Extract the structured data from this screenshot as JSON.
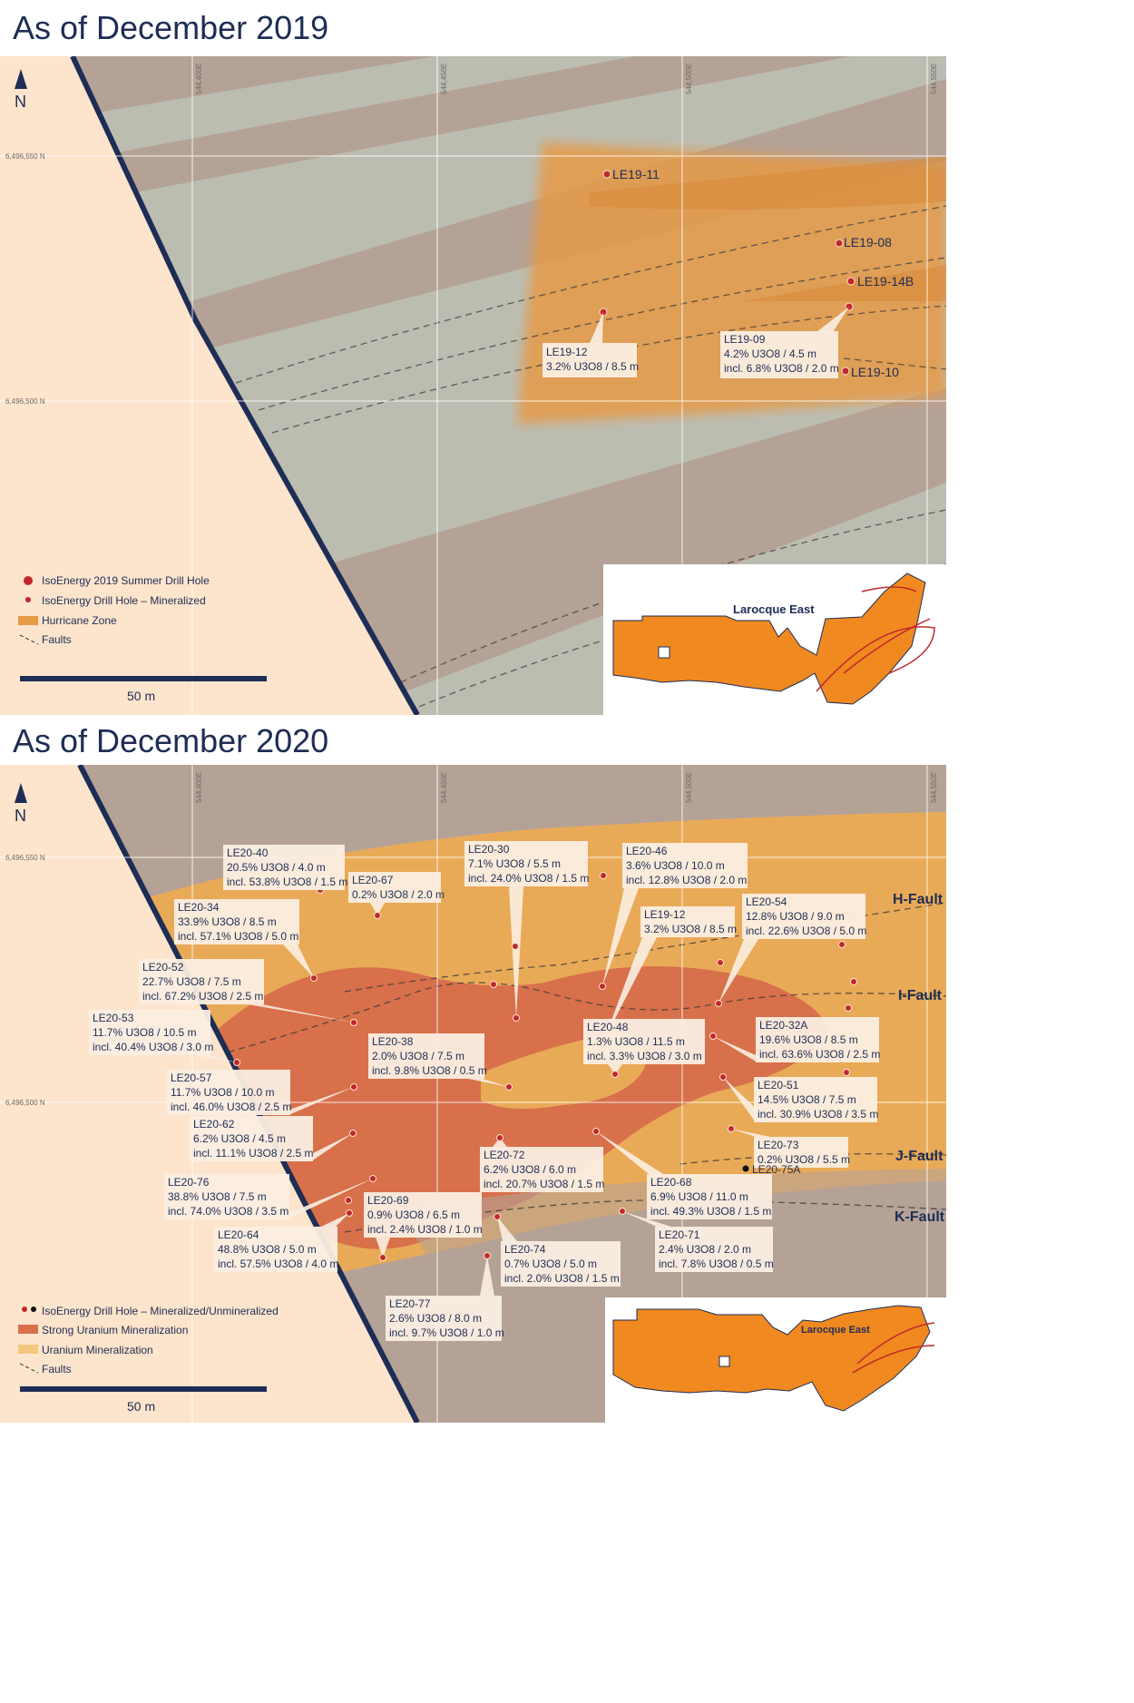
{
  "top": {
    "title": "As of December 2019",
    "north": "N",
    "grid": {
      "e1": "544,400E",
      "e2": "544,450E",
      "e3": "544,500E",
      "e4": "544,550E",
      "n1": "6,496,550 N",
      "n2": "6,496,500 N"
    },
    "holes": [
      {
        "id": "LE19-11"
      },
      {
        "id": "LE19-08"
      },
      {
        "id": "LE19-14B"
      },
      {
        "id": "LE19-10"
      }
    ],
    "callouts": {
      "le1912": {
        "name": "LE19-12",
        "l1": "3.2% U3O8 / 8.5 m"
      },
      "le1909": {
        "name": "LE19-09",
        "l1": "4.2% U3O8 / 4.5 m",
        "l2": "incl. 6.8% U3O8 / 2.0 m"
      }
    },
    "legend": {
      "summer": "IsoEnergy 2019 Summer Drill Hole",
      "mineralized": "IsoEnergy Drill Hole – Mineralized",
      "zone": "Hurricane Zone",
      "faults": "Faults"
    },
    "scale": "50 m",
    "inset": "Larocque East"
  },
  "bottom": {
    "title": "As of December 2020",
    "north": "N",
    "grid": {
      "e1": "544,400E",
      "e2": "544,450E",
      "e3": "544,500E",
      "e4": "544,550E",
      "n1": "6,496,550 N",
      "n2": "6,496,500 N"
    },
    "faults": {
      "h": "H-Fault",
      "i": "I-Fault",
      "j": "J-Fault",
      "k": "K-Fault"
    },
    "callouts": [
      {
        "name": "LE20-40",
        "l1": "20.5% U3O8 / 4.0 m",
        "l2": "incl. 53.8% U3O8 / 1.5 m"
      },
      {
        "name": "LE20-67",
        "l1": "0.2% U3O8 / 2.0 m",
        "l2": ""
      },
      {
        "name": "LE20-30",
        "l1": "7.1% U3O8 / 5.5 m",
        "l2": "incl. 24.0% U3O8 / 1.5 m"
      },
      {
        "name": "LE20-46",
        "l1": "3.6% U3O8 / 10.0 m",
        "l2": "incl. 12.8% U3O8 / 2.0 m"
      },
      {
        "name": "LE20-34",
        "l1": "33.9% U3O8 / 8.5 m",
        "l2": "incl. 57.1% U3O8 / 5.0 m"
      },
      {
        "name": "LE19-12",
        "l1": "3.2% U3O8 / 8.5 m",
        "l2": ""
      },
      {
        "name": "LE20-54",
        "l1": "12.8% U3O8 / 9.0 m",
        "l2": "incl. 22.6% U3O8 / 5.0 m"
      },
      {
        "name": "LE20-52",
        "l1": "22.7% U3O8 / 7.5 m",
        "l2": "incl. 67.2% U3O8 / 2.5 m"
      },
      {
        "name": "LE20-53",
        "l1": "11.7% U3O8 / 10.5 m",
        "l2": "incl. 40.4% U3O8 / 3.0 m"
      },
      {
        "name": "LE20-38",
        "l1": "2.0% U3O8 / 7.5 m",
        "l2": "incl. 9.8% U3O8 / 0.5 m"
      },
      {
        "name": "LE20-48",
        "l1": "1.3% U3O8 / 11.5 m",
        "l2": "incl. 3.3% U3O8 / 3.0 m"
      },
      {
        "name": "LE20-32A",
        "l1": "19.6% U3O8 / 8.5 m",
        "l2": "incl. 63.6% U3O8 / 2.5 m"
      },
      {
        "name": "LE20-57",
        "l1": "11.7% U3O8 / 10.0 m",
        "l2": "incl. 46.0% U3O8 / 2.5 m"
      },
      {
        "name": "LE20-51",
        "l1": "14.5% U3O8 / 7.5 m",
        "l2": "incl. 30.9% U3O8 / 3.5 m"
      },
      {
        "name": "LE20-62",
        "l1": "6.2% U3O8 / 4.5 m",
        "l2": "incl. 11.1% U3O8 / 2.5 m"
      },
      {
        "name": "LE20-73",
        "l1": "0.2% U3O8 / 5.5 m",
        "l2": ""
      },
      {
        "name": "LE20-72",
        "l1": "6.2% U3O8 / 6.0 m",
        "l2": "incl. 20.7% U3O8 / 1.5 m"
      },
      {
        "name": "LE20-76",
        "l1": "38.8% U3O8 / 7.5 m",
        "l2": "incl. 74.0% U3O8 / 3.5 m"
      },
      {
        "name": "LE20-68",
        "l1": "6.9% U3O8 / 11.0 m",
        "l2": "incl. 49.3% U3O8 / 1.5 m"
      },
      {
        "name": "LE20-69",
        "l1": "0.9% U3O8 / 6.5 m",
        "l2": "incl. 2.4% U3O8 / 1.0 m"
      },
      {
        "name": "LE20-64",
        "l1": "48.8% U3O8 / 5.0 m",
        "l2": "incl. 57.5% U3O8 / 4.0 m"
      },
      {
        "name": "LE20-71",
        "l1": "2.4% U3O8 / 2.0 m",
        "l2": "incl. 7.8% U3O8 / 0.5 m"
      },
      {
        "name": "LE20-74",
        "l1": "0.7% U3O8 / 5.0 m",
        "l2": "incl. 2.0% U3O8 / 1.5 m"
      },
      {
        "name": "LE20-77",
        "l1": "2.6% U3O8 / 8.0 m",
        "l2": "incl. 9.7% U3O8 / 1.0 m"
      }
    ],
    "le2075a": "LE20-75A",
    "legend": {
      "holes": "IsoEnergy Drill Hole – Mineralized/Unmineralized",
      "strong": "Strong Uranium Mineralization",
      "uranium": "Uranium  Mineralization",
      "faults": "Faults"
    },
    "scale": "50 m",
    "inset": "Larocque East"
  },
  "colors": {
    "navy": "#1e2d55",
    "tan": "#b5a296",
    "gray": "#bcbdb1",
    "peach": "#fde4cc",
    "orange": "#e69a46",
    "strong": "#d8704b",
    "light": "#e9aa58",
    "hole": "#c1272d"
  }
}
